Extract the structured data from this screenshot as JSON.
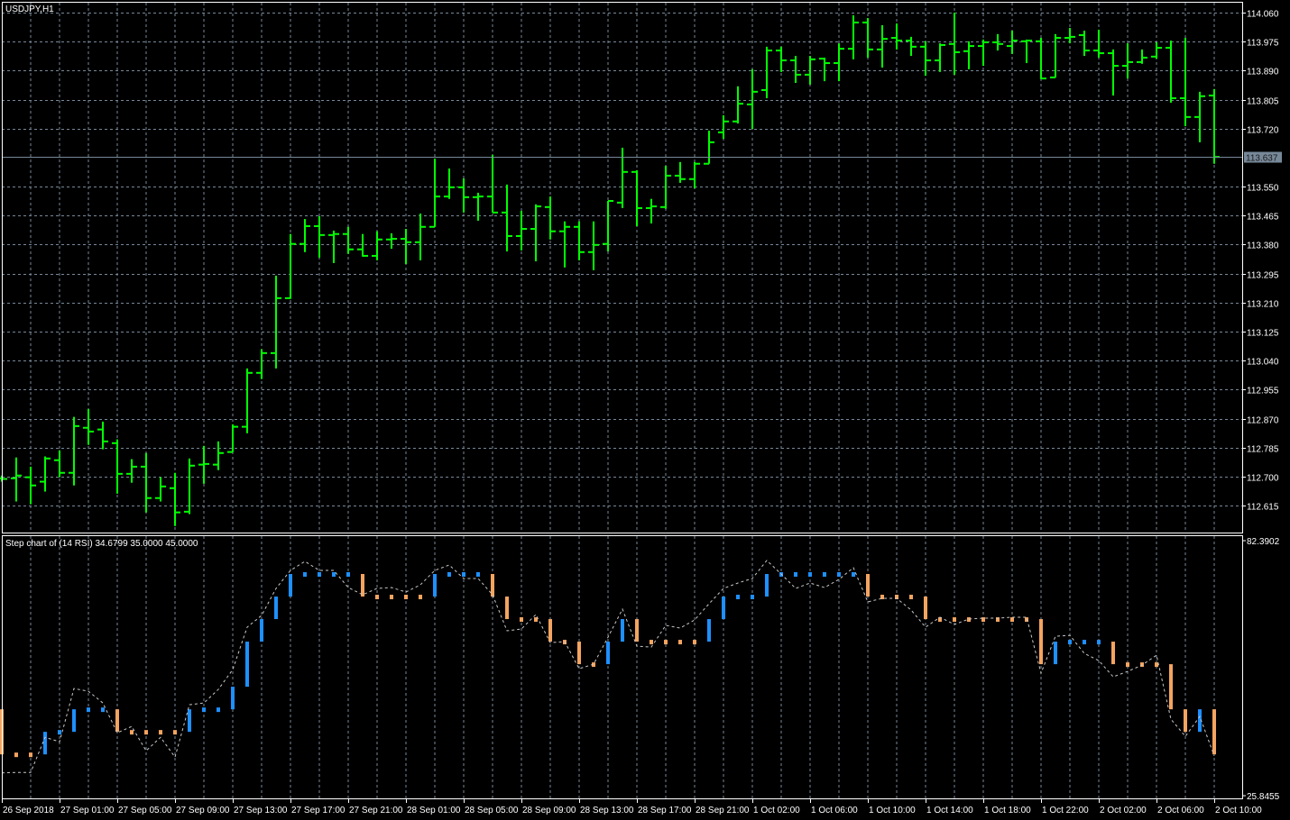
{
  "window": {
    "symbol_label": "USDJPY,H1"
  },
  "colors": {
    "background": "#000000",
    "bars": "#00ff00",
    "grid": "#778899",
    "axis": "#ffffff",
    "step_up": "#1e90ff",
    "step_down": "#f4a460",
    "rsi_line": "#c8c8c8",
    "bid_line": "#778899",
    "bid_label_bg": "#778899"
  },
  "indicator": {
    "label": "Step chart of (14 RSI) 34.6799 35.0000 45.0000"
  },
  "price_axis": {
    "labels": [
      "114.060",
      "113.975",
      "113.890",
      "113.805",
      "113.720",
      "113.550",
      "113.465",
      "113.380",
      "113.295",
      "113.210",
      "113.125",
      "113.040",
      "112.955",
      "112.870",
      "112.785",
      "112.700",
      "112.615"
    ],
    "current_price": "113.637"
  },
  "rsi_axis": {
    "max_label": "82.3902",
    "min_label": "25.8455"
  },
  "time_axis": [
    {
      "bar": 0,
      "label": "26 Sep 2018"
    },
    {
      "bar": 4,
      "label": "27 Sep 01:00"
    },
    {
      "bar": 8,
      "label": "27 Sep 05:00"
    },
    {
      "bar": 12,
      "label": "27 Sep 09:00"
    },
    {
      "bar": 16,
      "label": "27 Sep 13:00"
    },
    {
      "bar": 20,
      "label": "27 Sep 17:00"
    },
    {
      "bar": 24,
      "label": "27 Sep 21:00"
    },
    {
      "bar": 28,
      "label": "28 Sep 01:00"
    },
    {
      "bar": 32,
      "label": "28 Sep 05:00"
    },
    {
      "bar": 36,
      "label": "28 Sep 09:00"
    },
    {
      "bar": 40,
      "label": "28 Sep 13:00"
    },
    {
      "bar": 44,
      "label": "28 Sep 17:00"
    },
    {
      "bar": 48,
      "label": "28 Sep 21:00"
    },
    {
      "bar": 52,
      "label": "1 Oct 02:00"
    },
    {
      "bar": 56,
      "label": "1 Oct 06:00"
    },
    {
      "bar": 60,
      "label": "1 Oct 10:00"
    },
    {
      "bar": 64,
      "label": "1 Oct 14:00"
    },
    {
      "bar": 68,
      "label": "1 Oct 18:00"
    },
    {
      "bar": 72,
      "label": "1 Oct 22:00"
    },
    {
      "bar": 76,
      "label": "2 Oct 02:00"
    },
    {
      "bar": 80,
      "label": "2 Oct 06:00"
    },
    {
      "bar": 84,
      "label": "2 Oct 10:00"
    }
  ],
  "chart_data": [
    {
      "type": "ohlc",
      "ylim": [
        112.615,
        114.06
      ],
      "grid": true,
      "ohlc": [
        [
          112.695,
          112.703,
          112.685,
          112.693
        ],
        [
          112.695,
          112.756,
          112.627,
          112.703
        ],
        [
          112.698,
          112.729,
          112.619,
          112.674
        ],
        [
          112.685,
          112.759,
          112.656,
          112.753
        ],
        [
          112.748,
          112.777,
          112.698,
          112.711
        ],
        [
          112.711,
          112.875,
          112.674,
          112.848
        ],
        [
          112.843,
          112.898,
          112.793,
          112.832
        ],
        [
          112.838,
          112.861,
          112.78,
          112.803
        ],
        [
          112.798,
          112.809,
          112.65,
          112.708
        ],
        [
          112.708,
          112.751,
          112.682,
          112.729
        ],
        [
          112.729,
          112.769,
          112.595,
          112.637
        ],
        [
          112.637,
          112.698,
          112.627,
          112.671
        ],
        [
          112.666,
          112.711,
          112.555,
          112.595
        ],
        [
          112.597,
          112.753,
          112.59,
          112.732
        ],
        [
          112.735,
          112.79,
          112.679,
          112.737
        ],
        [
          112.735,
          112.803,
          112.719,
          112.769
        ],
        [
          112.772,
          112.853,
          112.772,
          112.846
        ],
        [
          112.846,
          113.017,
          112.827,
          113.004
        ],
        [
          113.004,
          113.073,
          112.986,
          113.062
        ],
        [
          113.062,
          113.289,
          113.017,
          113.223
        ],
        [
          113.223,
          113.411,
          113.221,
          113.382
        ],
        [
          113.382,
          113.455,
          113.358,
          113.434
        ],
        [
          113.434,
          113.463,
          113.342,
          113.408
        ],
        [
          113.408,
          113.421,
          113.326,
          113.411
        ],
        [
          113.411,
          113.432,
          113.353,
          113.366
        ],
        [
          113.366,
          113.411,
          113.345,
          113.347
        ],
        [
          113.347,
          113.419,
          113.334,
          113.395
        ],
        [
          113.395,
          113.413,
          113.368,
          113.397
        ],
        [
          113.397,
          113.426,
          113.323,
          113.387
        ],
        [
          113.387,
          113.471,
          113.334,
          113.432
        ],
        [
          113.432,
          113.632,
          113.432,
          113.521
        ],
        [
          113.521,
          113.603,
          113.514,
          113.548
        ],
        [
          113.548,
          113.574,
          113.474,
          113.519
        ],
        [
          113.519,
          113.532,
          113.45,
          113.521
        ],
        [
          113.521,
          113.643,
          113.474,
          113.474
        ],
        [
          113.474,
          113.556,
          113.36,
          113.405
        ],
        [
          113.405,
          113.479,
          113.363,
          113.426
        ],
        [
          113.426,
          113.498,
          113.331,
          113.492
        ],
        [
          113.49,
          113.521,
          113.395,
          113.419
        ],
        [
          113.419,
          113.448,
          113.313,
          113.432
        ],
        [
          113.432,
          113.448,
          113.334,
          113.358
        ],
        [
          113.358,
          113.448,
          113.305,
          113.379
        ],
        [
          113.382,
          113.508,
          113.36,
          113.508
        ],
        [
          113.503,
          113.664,
          113.487,
          113.593
        ],
        [
          113.593,
          113.598,
          113.434,
          113.487
        ],
        [
          113.487,
          113.514,
          113.442,
          113.492
        ],
        [
          113.49,
          113.611,
          113.485,
          113.582
        ],
        [
          113.582,
          113.622,
          113.561,
          113.572
        ],
        [
          113.572,
          113.622,
          113.545,
          113.617
        ],
        [
          113.617,
          113.714,
          113.617,
          113.68
        ],
        [
          113.709,
          113.759,
          113.69,
          113.741
        ],
        [
          113.741,
          113.844,
          113.735,
          113.793
        ],
        [
          113.791,
          113.894,
          113.719,
          113.828
        ],
        [
          113.833,
          113.96,
          113.809,
          113.949
        ],
        [
          113.949,
          113.96,
          113.886,
          113.92
        ],
        [
          113.92,
          113.933,
          113.854,
          113.878
        ],
        [
          113.878,
          113.933,
          113.849,
          113.923
        ],
        [
          113.925,
          113.928,
          113.859,
          113.912
        ],
        [
          113.912,
          113.97,
          113.859,
          113.954
        ],
        [
          113.954,
          114.052,
          113.923,
          114.031
        ],
        [
          114.031,
          114.044,
          113.928,
          113.952
        ],
        [
          113.952,
          114.023,
          113.899,
          113.983
        ],
        [
          113.986,
          114.028,
          113.952,
          113.978
        ],
        [
          113.978,
          113.989,
          113.933,
          113.96
        ],
        [
          113.96,
          113.976,
          113.875,
          113.92
        ],
        [
          113.92,
          113.97,
          113.886,
          113.965
        ],
        [
          113.968,
          114.06,
          113.878,
          113.944
        ],
        [
          113.947,
          113.976,
          113.894,
          113.962
        ],
        [
          113.962,
          113.981,
          113.904,
          113.973
        ],
        [
          113.973,
          113.997,
          113.949,
          113.968
        ],
        [
          113.962,
          114.007,
          113.939,
          113.978
        ],
        [
          113.976,
          113.981,
          113.912,
          113.978
        ],
        [
          113.976,
          113.986,
          113.865,
          113.867
        ],
        [
          113.87,
          113.997,
          113.87,
          113.986
        ],
        [
          113.986,
          114.015,
          113.97,
          113.989
        ],
        [
          113.994,
          114.007,
          113.933,
          113.949
        ],
        [
          113.949,
          114.01,
          113.928,
          113.941
        ],
        [
          113.941,
          113.952,
          113.817,
          113.904
        ],
        [
          113.904,
          113.97,
          113.867,
          113.915
        ],
        [
          113.915,
          113.952,
          113.91,
          113.928
        ],
        [
          113.931,
          113.973,
          113.925,
          113.957
        ],
        [
          113.957,
          113.978,
          113.796,
          113.809
        ],
        [
          113.809,
          113.986,
          113.727,
          113.754
        ],
        [
          113.754,
          113.828,
          113.68,
          113.815
        ],
        [
          113.817,
          113.836,
          113.617,
          113.637
        ]
      ]
    },
    {
      "type": "step",
      "ylim": [
        25.8455,
        82.3902
      ],
      "rsi": [
        30.9,
        31.0,
        31.0,
        38.8,
        37.8,
        49.6,
        49.0,
        46.4,
        39.8,
        41.2,
        35.8,
        38.8,
        34.4,
        46.0,
        46.4,
        49.4,
        53.8,
        63.2,
        65.8,
        71.8,
        75.8,
        77.8,
        75.8,
        75.8,
        72.0,
        70.4,
        71.8,
        72.0,
        71.0,
        72.6,
        75.8,
        77.0,
        74.0,
        74.0,
        70.4,
        62.4,
        62.8,
        66.0,
        59.8,
        60.0,
        54.0,
        55.0,
        61.0,
        67.2,
        59.0,
        58.8,
        63.6,
        63.0,
        64.8,
        68.4,
        71.8,
        73.0,
        74.0,
        78.0,
        75.0,
        71.8,
        73.0,
        72.0,
        73.8,
        76.4,
        68.8,
        69.6,
        69.6,
        67.0,
        63.2,
        65.4,
        63.8,
        65.0,
        65.2,
        65.2,
        65.4,
        65.4,
        53.0,
        61.2,
        61.4,
        57.4,
        55.8,
        52.2,
        53.4,
        54.8,
        57.0,
        42.8,
        39.0,
        43.4,
        34.68
      ],
      "first_step_from": 45,
      "step_levels": [
        35,
        35,
        35,
        40,
        40,
        45,
        45,
        45,
        40,
        40,
        40,
        40,
        40,
        45,
        45,
        45,
        50,
        60,
        65,
        70,
        75,
        75,
        75,
        75,
        75,
        70,
        70,
        70,
        70,
        70,
        75,
        75,
        75,
        75,
        70,
        65,
        65,
        65,
        60,
        60,
        55,
        55,
        60,
        65,
        60,
        60,
        60,
        60,
        60,
        65,
        70,
        70,
        70,
        75,
        75,
        75,
        75,
        75,
        75,
        75,
        70,
        70,
        70,
        70,
        65,
        65,
        65,
        65,
        65,
        65,
        65,
        65,
        55,
        60,
        60,
        60,
        60,
        55,
        55,
        55,
        55,
        45,
        40,
        45,
        35
      ]
    }
  ]
}
